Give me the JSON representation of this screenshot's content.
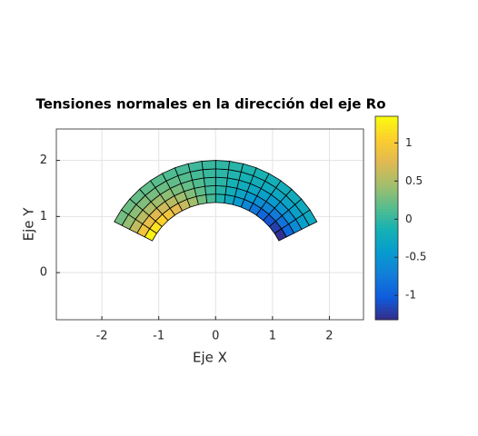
{
  "chart_data": {
    "type": "polar-mesh",
    "title": "Tensiones normales en la dirección del eje Ro",
    "xlabel": "Eje X",
    "ylabel": "Eje Y",
    "xlim": [
      -2.8,
      2.6
    ],
    "ylim": [
      -0.84,
      2.56
    ],
    "xticks": [
      -2,
      -1,
      0,
      1,
      2
    ],
    "yticks": [
      0,
      1,
      2
    ],
    "grid": true,
    "r_edges": [
      1.25,
      1.4,
      1.55,
      1.7,
      1.85,
      2.0
    ],
    "theta_edges": [
      27,
      34,
      41,
      48,
      55,
      62,
      69,
      76,
      83,
      90,
      97,
      104,
      111,
      118,
      125,
      132,
      139,
      146,
      153
    ],
    "values": [
      [
        -1.29,
        -1.19,
        -1.07,
        -0.93,
        -0.78,
        -0.62,
        -0.45,
        -0.27,
        -0.09,
        0.09,
        0.27,
        0.45,
        0.62,
        0.78,
        0.93,
        1.07,
        1.19,
        1.29
      ],
      [
        -0.91,
        -0.83,
        -0.75,
        -0.65,
        -0.55,
        -0.44,
        -0.32,
        -0.19,
        -0.06,
        0.06,
        0.19,
        0.32,
        0.44,
        0.55,
        0.65,
        0.75,
        0.83,
        0.91
      ],
      [
        -0.6,
        -0.56,
        -0.5,
        -0.44,
        -0.37,
        -0.29,
        -0.21,
        -0.13,
        -0.04,
        0.04,
        0.13,
        0.21,
        0.29,
        0.37,
        0.44,
        0.5,
        0.56,
        0.6
      ],
      [
        -0.39,
        -0.36,
        -0.32,
        -0.28,
        -0.23,
        -0.19,
        -0.14,
        -0.08,
        -0.03,
        0.03,
        0.08,
        0.14,
        0.19,
        0.23,
        0.28,
        0.32,
        0.36,
        0.39
      ],
      [
        -0.26,
        -0.24,
        -0.21,
        -0.19,
        -0.16,
        -0.12,
        -0.09,
        -0.05,
        -0.02,
        0.02,
        0.05,
        0.09,
        0.12,
        0.16,
        0.19,
        0.21,
        0.24,
        0.26
      ]
    ],
    "clim": [
      -1.32,
      1.35
    ],
    "cticks": [
      {
        "value": -1,
        "label": "-1"
      },
      {
        "value": -0.5,
        "label": "-0.5"
      },
      0,
      0.5,
      1
    ],
    "colormap": [
      "#352a87",
      "#0f5cdd",
      "#127dd8",
      "#079ccf",
      "#15b1b4",
      "#59bd8c",
      "#a5be6b",
      "#e1b952",
      "#fcce2e",
      "#f9fb0e"
    ]
  }
}
